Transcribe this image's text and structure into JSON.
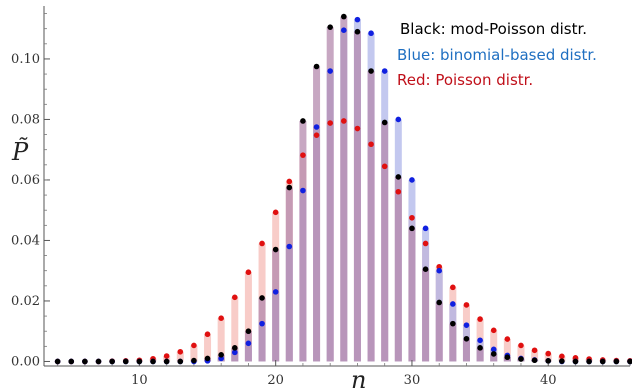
{
  "chart_data": {
    "type": "scatter",
    "xlabel": "n",
    "ylabel": "P̃",
    "xlim": [
      3,
      46
    ],
    "ylim": [
      -0.0015,
      0.1175
    ],
    "xticks": [
      10,
      20,
      30,
      40
    ],
    "yticks": [
      0.0,
      0.02,
      0.04,
      0.06,
      0.08,
      0.1
    ],
    "ytick_labels": [
      "0.00",
      "0.02",
      "0.04",
      "0.06",
      "0.08",
      "0.10"
    ],
    "x": [
      4,
      5,
      6,
      7,
      8,
      9,
      10,
      11,
      12,
      13,
      14,
      15,
      16,
      17,
      18,
      19,
      20,
      21,
      22,
      23,
      24,
      25,
      26,
      27,
      28,
      29,
      30,
      31,
      32,
      33,
      34,
      35,
      36,
      37,
      38,
      39,
      40,
      41,
      42,
      43,
      44,
      45,
      46
    ],
    "legend": [
      {
        "text": "Black: mod-Poisson distr.",
        "color": "#000000"
      },
      {
        "text": "Blue: binomial-based distr.",
        "color": "#1f6fc1"
      },
      {
        "text": "Red: Poisson distr.",
        "color": "#c0101a"
      }
    ],
    "series": [
      {
        "name": "Red: Poisson distr.",
        "color": "#e01010",
        "bar_color": "#f5b6b0",
        "values": [
          0.0,
          0.0,
          0.0,
          0.0,
          0.0001,
          0.0002,
          0.0004,
          0.0009,
          0.0018,
          0.0032,
          0.0053,
          0.009,
          0.0143,
          0.0212,
          0.0295,
          0.039,
          0.0493,
          0.0595,
          0.0682,
          0.0748,
          0.0788,
          0.0795,
          0.077,
          0.0718,
          0.0645,
          0.0561,
          0.0475,
          0.039,
          0.0313,
          0.0245,
          0.0187,
          0.014,
          0.0103,
          0.0074,
          0.0053,
          0.0037,
          0.0026,
          0.0017,
          0.0012,
          0.0008,
          0.0005,
          0.0003,
          0.0002
        ]
      },
      {
        "name": "Blue: binomial-based distr.",
        "color": "#1020e0",
        "bar_color": "#aab0e8",
        "values": [
          0.0,
          0.0,
          0.0,
          0.0,
          0.0,
          0.0,
          0.0,
          0.0,
          0.0,
          0.0,
          0.0,
          0.0002,
          0.001,
          0.003,
          0.006,
          0.0125,
          0.023,
          0.038,
          0.0565,
          0.0775,
          0.096,
          0.1095,
          0.113,
          0.1085,
          0.096,
          0.08,
          0.06,
          0.044,
          0.03,
          0.019,
          0.012,
          0.007,
          0.004,
          0.002,
          0.001,
          0.0005,
          0.0002,
          0.0,
          0.0,
          0.0,
          0.0,
          0.0,
          0.0
        ]
      },
      {
        "name": "Black: mod-Poisson distr.",
        "color": "#000000",
        "bar_color": "#b48aae",
        "values": [
          0.0,
          0.0,
          0.0,
          0.0,
          0.0,
          0.0,
          0.0,
          0.0,
          0.0,
          0.0,
          0.0003,
          0.001,
          0.0022,
          0.0045,
          0.01,
          0.021,
          0.037,
          0.0575,
          0.0795,
          0.0975,
          0.1105,
          0.114,
          0.109,
          0.096,
          0.079,
          0.061,
          0.044,
          0.0305,
          0.0195,
          0.0125,
          0.0075,
          0.0045,
          0.0025,
          0.0014,
          0.0008,
          0.0004,
          0.0002,
          0.0001,
          0.0,
          0.0,
          0.0,
          0.0,
          0.0
        ]
      }
    ]
  }
}
